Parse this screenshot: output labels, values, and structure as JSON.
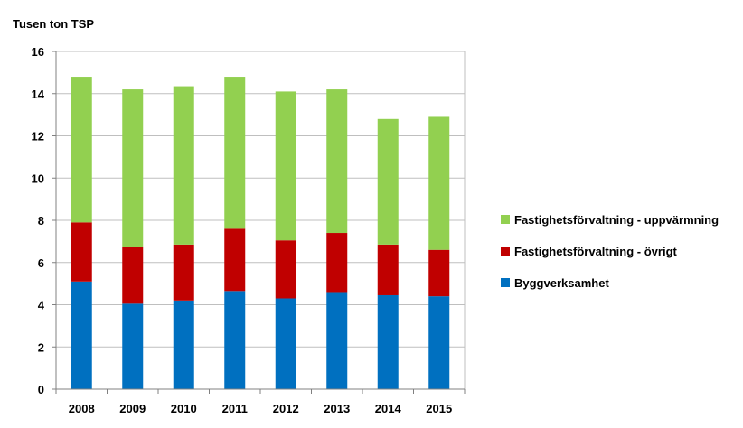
{
  "chart_data": {
    "type": "bar",
    "stacked": true,
    "ylabel": "Tusen ton TSP",
    "categories": [
      "2008",
      "2009",
      "2010",
      "2011",
      "2012",
      "2013",
      "2014",
      "2015"
    ],
    "series": [
      {
        "name": "Byggverksamhet",
        "color": "#0070C0",
        "values": [
          5.1,
          4.05,
          4.2,
          4.65,
          4.3,
          4.6,
          4.45,
          4.4
        ]
      },
      {
        "name": "Fastighetsförvaltning - övrigt",
        "color": "#C00000",
        "values": [
          2.8,
          2.7,
          2.65,
          2.95,
          2.75,
          2.8,
          2.4,
          2.2
        ]
      },
      {
        "name": "Fastighetsförvaltning - uppvärmning",
        "color": "#92D050",
        "values": [
          6.9,
          7.45,
          7.5,
          7.2,
          7.05,
          6.8,
          5.95,
          6.3
        ]
      }
    ],
    "ylim": [
      0,
      16
    ],
    "yticks": [
      "0",
      "2",
      "4",
      "6",
      "8",
      "10",
      "12",
      "14",
      "16"
    ],
    "grid": true,
    "legend_position": "right"
  }
}
